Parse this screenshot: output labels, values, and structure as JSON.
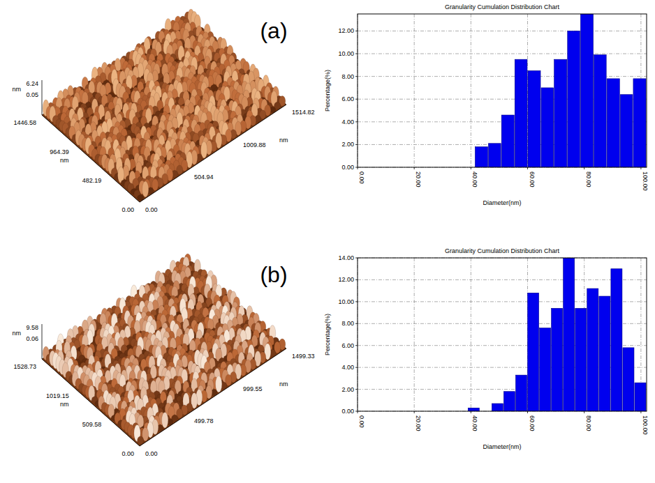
{
  "chart_data": [
    {
      "type": "histogram",
      "panel_label": "(a)",
      "title": "Granularity Cumulation Distribution Chart",
      "x_label": "Diameter(nm)",
      "y_label": "Percentage(%)",
      "bins": [
        41.5,
        46.2,
        50.8,
        55.5,
        60.1,
        64.8,
        69.4,
        74.1,
        78.7,
        83.4,
        88,
        92.7,
        97.3,
        102
      ],
      "values": [
        1.8,
        2.1,
        4.6,
        9.5,
        8.5,
        7.0,
        9.5,
        12.0,
        13.5,
        9.9,
        7.8,
        6.4,
        7.8
      ],
      "color": "#0000ee",
      "xlim": [
        0,
        102
      ],
      "xticks": [
        {
          "value": 0,
          "label": "0.00"
        },
        {
          "value": 20,
          "label": "20.00"
        },
        {
          "value": 40,
          "label": "40.00"
        },
        {
          "value": 60,
          "label": "60.00"
        },
        {
          "value": 80,
          "label": "80.00"
        },
        {
          "value": 100,
          "label": "100.00"
        }
      ],
      "ylim": [
        0,
        13.5
      ],
      "yticks": [
        {
          "value": 0,
          "label": "0.00"
        },
        {
          "value": 2,
          "label": "2.00"
        },
        {
          "value": 4,
          "label": "4.00"
        },
        {
          "value": 6,
          "label": "6.00"
        },
        {
          "value": 8,
          "label": "8.00"
        },
        {
          "value": 10,
          "label": "10.00"
        },
        {
          "value": 12,
          "label": "12.00"
        }
      ],
      "grid": true,
      "surface": {
        "z_labels": [
          "6.24",
          "0.05"
        ],
        "z_unit": "nm",
        "y_labels": [
          "0.00",
          "482.19",
          "964.39",
          "1446.58"
        ],
        "y_unit": "nm",
        "x_labels": [
          "0.00",
          "504.94",
          "1009.88",
          "1514.82"
        ],
        "x_unit": "nm"
      }
    },
    {
      "type": "histogram",
      "panel_label": "(b)",
      "title": "Granularity Cumulation Distribution Chart",
      "x_label": "Diameter(nm)",
      "y_label": "Percentage(%)",
      "bins": [
        39,
        43.2,
        47.4,
        51.6,
        55.8,
        60,
        64.2,
        68.4,
        72.6,
        76.8,
        81,
        85.2,
        89.4,
        93.6,
        97.8,
        102
      ],
      "values": [
        0.3,
        0,
        0.7,
        1.8,
        3.3,
        10.8,
        7.6,
        9.4,
        14.0,
        9.4,
        11.2,
        10.5,
        13.0,
        5.8,
        2.6
      ],
      "color": "#0000ee",
      "xlim": [
        0,
        102
      ],
      "xticks": [
        {
          "value": 0,
          "label": "0.00"
        },
        {
          "value": 20,
          "label": "20.00"
        },
        {
          "value": 40,
          "label": "40.00"
        },
        {
          "value": 60,
          "label": "60.00"
        },
        {
          "value": 80,
          "label": "80.00"
        },
        {
          "value": 100,
          "label": "100.00"
        }
      ],
      "ylim": [
        0,
        14
      ],
      "yticks": [
        {
          "value": 0,
          "label": "0.00"
        },
        {
          "value": 2,
          "label": "2.00"
        },
        {
          "value": 4,
          "label": "4.00"
        },
        {
          "value": 6,
          "label": "6.00"
        },
        {
          "value": 8,
          "label": "8.00"
        },
        {
          "value": 10,
          "label": "10.00"
        },
        {
          "value": 12,
          "label": "12.00"
        },
        {
          "value": 14,
          "label": "14.00"
        }
      ],
      "grid": true,
      "surface": {
        "z_labels": [
          "9.58",
          "0.06"
        ],
        "z_unit": "nm",
        "y_labels": [
          "0.00",
          "509.58",
          "1019.15",
          "1528.73"
        ],
        "y_unit": "nm",
        "x_labels": [
          "0.00",
          "499.78",
          "999.55",
          "1499.33"
        ],
        "x_unit": "nm"
      }
    }
  ]
}
